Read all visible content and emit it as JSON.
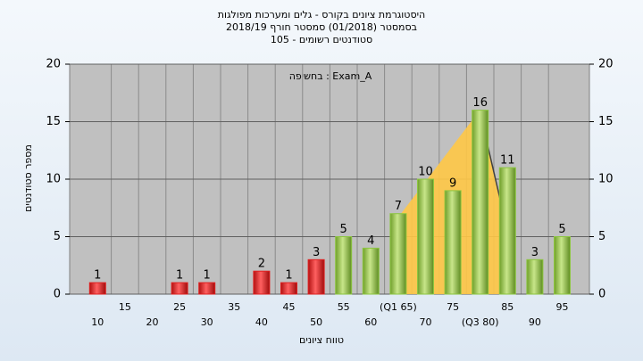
{
  "chart_data": {
    "type": "bar",
    "title": "היסטוגרמת ציונים בקורס - גלים ומערכות מפולגות",
    "subtitle": "בסמסטר  (01/2018)  סמסטר חורף 2018/19",
    "subtitle2": "סטודנטים רשומים - 105",
    "annotation": "בחשיפה : Exam_A",
    "x_label": "טווח ציונים",
    "y_label": "מספר סטודנטים",
    "categories": [
      "10",
      "15",
      "20",
      "25",
      "30",
      "35",
      "40",
      "45",
      "50",
      "55",
      "60",
      "(Q1 65)",
      "70",
      "75",
      "(Q3 80)",
      "85",
      "90",
      "95"
    ],
    "values": [
      1,
      0,
      0,
      1,
      1,
      0,
      2,
      1,
      3,
      5,
      4,
      7,
      10,
      9,
      16,
      11,
      3,
      5
    ],
    "colors": [
      "#e02020",
      "#e02020",
      "#e02020",
      "#e02020",
      "#e02020",
      "#e02020",
      "#e02020",
      "#e02020",
      "#e02020",
      "#8cc63f",
      "#8cc63f",
      "#8cc63f",
      "#8cc63f",
      "#8cc63f",
      "#8cc63f",
      "#8cc63f",
      "#8cc63f",
      "#8cc63f"
    ],
    "ylim": [
      0,
      20
    ],
    "yticks": [
      0,
      5,
      10,
      15,
      20
    ],
    "grid": true
  }
}
